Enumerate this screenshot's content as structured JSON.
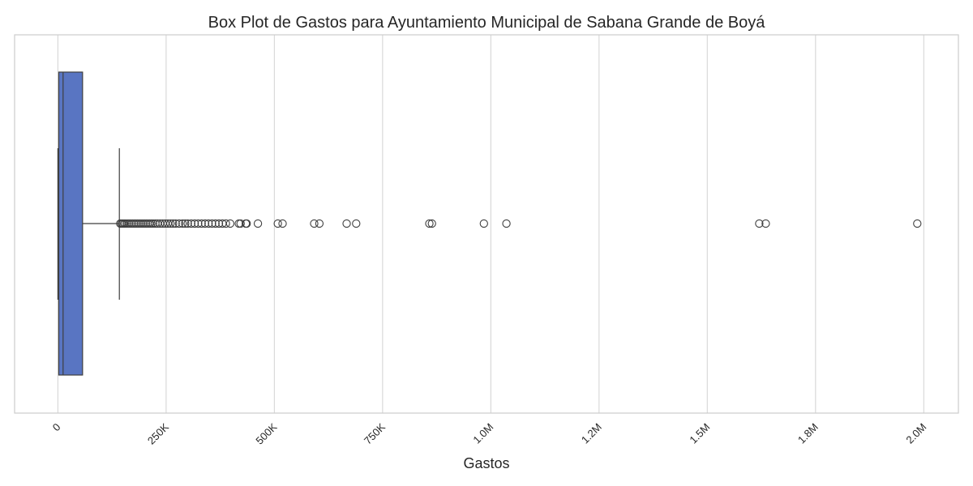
{
  "chart_data": {
    "type": "box",
    "orientation": "horizontal",
    "title": "Box Plot de Gastos para Ayuntamiento Municipal de Sabana Grande de Boyá",
    "xlabel": "Gastos",
    "ylabel": "",
    "xlim": [
      -100000,
      2080000
    ],
    "grid": true,
    "x_ticks": [
      {
        "value": 0,
        "label": "0"
      },
      {
        "value": 250000,
        "label": "250K"
      },
      {
        "value": 500000,
        "label": "500K"
      },
      {
        "value": 750000,
        "label": "750K"
      },
      {
        "value": 1000000,
        "label": "1.0M"
      },
      {
        "value": 1250000,
        "label": "1.2M"
      },
      {
        "value": 1500000,
        "label": "1.5M"
      },
      {
        "value": 1750000,
        "label": "1.8M"
      },
      {
        "value": 2000000,
        "label": "2.0M"
      }
    ],
    "box": {
      "whisker_low": 0,
      "q1": 2000,
      "median": 12000,
      "q3": 57000,
      "whisker_high": 142000,
      "color": "#5975c2"
    },
    "outliers": [
      144000,
      147000,
      150000,
      153000,
      156000,
      160000,
      164000,
      168000,
      172000,
      176000,
      180000,
      184000,
      188000,
      192000,
      196000,
      200000,
      204000,
      208000,
      212000,
      216000,
      220000,
      225000,
      230000,
      236000,
      242000,
      248000,
      254000,
      260000,
      266000,
      272000,
      280000,
      288000,
      294000,
      300000,
      308000,
      316000,
      324000,
      332000,
      340000,
      348000,
      356000,
      364000,
      372000,
      380000,
      388000,
      398000,
      418000,
      422000,
      434000,
      436000,
      462000,
      508000,
      519000,
      592000,
      604000,
      667000,
      689000,
      858000,
      864000,
      984000,
      1036000,
      1620000,
      1635000,
      1985000
    ]
  }
}
